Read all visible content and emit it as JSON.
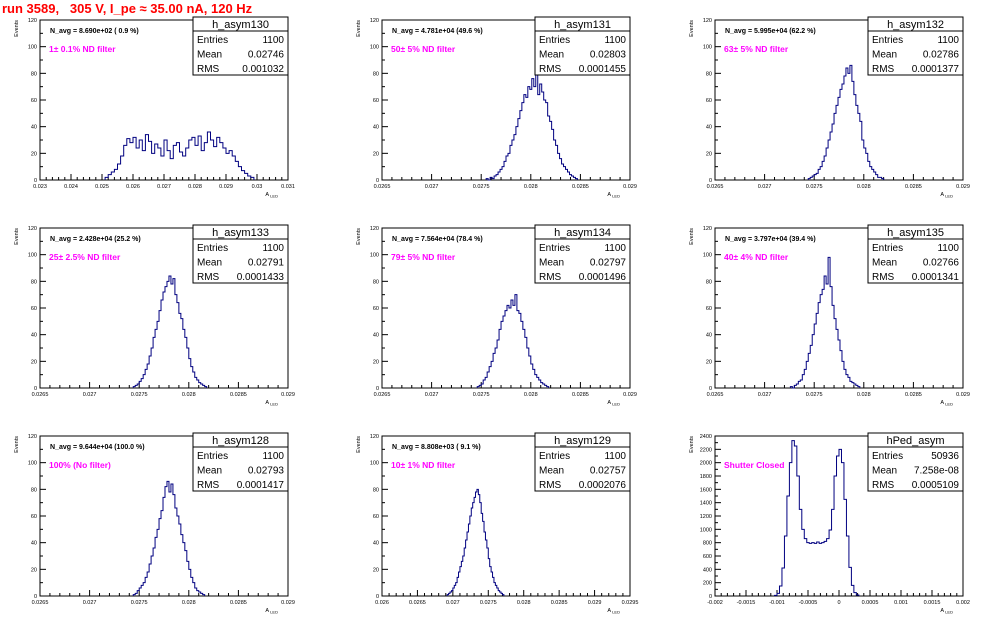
{
  "page_title": "run 3589,   305 V, I_pe ≈ 35.00 nA, 120 Hz",
  "colors": {
    "histogram": "#000080",
    "annotation": "#ff00ff",
    "title": "#ff0000",
    "axis": "#000000"
  },
  "stat_labels": {
    "entries": "Entries",
    "mean": "Mean",
    "rms": "RMS"
  },
  "chart_data": [
    {
      "type": "histogram",
      "name": "h_asym130",
      "navg": "N_avg = 8.690e+02 ( 0.9 %)",
      "filter": "1± 0.1% ND filter",
      "entries": "1100",
      "mean": "0.02746",
      "rms": "0.001032",
      "ylabel": "Events",
      "xlabel": "A",
      "xlabel_sub": "LED",
      "xlim": [
        0.023,
        0.031
      ],
      "ylim": [
        0,
        120
      ],
      "xticks": [
        "0.023",
        "0.024",
        "0.025",
        "0.026",
        "0.027",
        "0.028",
        "0.029",
        "0.03",
        "0.031"
      ],
      "yticks": [
        "0",
        "20",
        "40",
        "60",
        "80",
        "100",
        "120"
      ],
      "bins": {
        "start": 0.0251,
        "width": 0.0001,
        "counts": [
          2,
          4,
          6,
          8,
          12,
          18,
          26,
          31,
          28,
          32,
          24,
          30,
          22,
          34,
          29,
          20,
          27,
          24,
          18,
          30,
          22,
          16,
          26,
          28,
          21,
          18,
          24,
          30,
          32,
          26,
          33,
          22,
          28,
          36,
          30,
          25,
          32,
          28,
          24,
          20,
          22,
          18,
          14,
          10,
          7,
          5,
          3,
          2
        ]
      }
    },
    {
      "type": "histogram",
      "name": "h_asym131",
      "navg": "N_avg = 4.781e+04 (49.6 %)",
      "filter": "50± 5% ND filter",
      "entries": "1100",
      "mean": "0.02803",
      "rms": "0.0001455",
      "ylabel": "Events",
      "xlabel": "A",
      "xlabel_sub": "LED",
      "xlim": [
        0.0265,
        0.029
      ],
      "ylim": [
        0,
        120
      ],
      "xticks": [
        "0.0265",
        "0.027",
        "0.0275",
        "0.028",
        "0.0285",
        "0.029"
      ],
      "yticks": [
        "0",
        "20",
        "40",
        "60",
        "80",
        "100",
        "120"
      ],
      "bins": {
        "start": 0.02755,
        "width": 2e-05,
        "counts": [
          1,
          0,
          2,
          1,
          3,
          4,
          6,
          8,
          10,
          14,
          18,
          20,
          26,
          30,
          34,
          40,
          46,
          52,
          58,
          64,
          62,
          70,
          68,
          76,
          70,
          84,
          64,
          72,
          66,
          60,
          58,
          48,
          44,
          38,
          30,
          26,
          20,
          16,
          12,
          10,
          8,
          6,
          4,
          3,
          2,
          1
        ]
      }
    },
    {
      "type": "histogram",
      "name": "h_asym132",
      "navg": "N_avg = 5.995e+04 (62.2 %)",
      "filter": "63± 5% ND filter",
      "entries": "1100",
      "mean": "0.02786",
      "rms": "0.0001377",
      "ylabel": "Events",
      "xlabel": "A",
      "xlabel_sub": "LED",
      "xlim": [
        0.0265,
        0.029
      ],
      "ylim": [
        0,
        120
      ],
      "xticks": [
        "0.0265",
        "0.027",
        "0.0275",
        "0.028",
        "0.0285",
        "0.029"
      ],
      "yticks": [
        "0",
        "20",
        "40",
        "60",
        "80",
        "100",
        "120"
      ],
      "bins": {
        "start": 0.02744,
        "width": 2e-05,
        "counts": [
          1,
          2,
          3,
          4,
          5,
          8,
          10,
          14,
          18,
          24,
          30,
          36,
          42,
          50,
          56,
          62,
          68,
          72,
          78,
          84,
          80,
          86,
          74,
          64,
          56,
          50,
          44,
          30,
          24,
          20,
          14,
          10,
          8,
          6,
          4,
          2,
          2,
          1
        ]
      }
    },
    {
      "type": "histogram",
      "name": "h_asym133",
      "navg": "N_avg = 2.428e+04 (25.2 %)",
      "filter": "25± 2.5% ND filter",
      "entries": "1100",
      "mean": "0.02791",
      "rms": "0.0001433",
      "ylabel": "Events",
      "xlabel": "A",
      "xlabel_sub": "LED",
      "xlim": [
        0.0265,
        0.029
      ],
      "ylim": [
        0,
        120
      ],
      "xticks": [
        "0.0265",
        "0.027",
        "0.0275",
        "0.028",
        "0.0285",
        "0.029"
      ],
      "yticks": [
        "0",
        "20",
        "40",
        "60",
        "80",
        "100",
        "120"
      ],
      "bins": {
        "start": 0.02744,
        "width": 2e-05,
        "counts": [
          1,
          2,
          3,
          5,
          7,
          10,
          14,
          18,
          24,
          30,
          38,
          44,
          50,
          58,
          66,
          72,
          76,
          80,
          84,
          78,
          82,
          70,
          64,
          56,
          52,
          44,
          38,
          30,
          22,
          16,
          12,
          8,
          6,
          4,
          3,
          2,
          1
        ]
      }
    },
    {
      "type": "histogram",
      "name": "h_asym134",
      "navg": "N_avg = 7.564e+04 (78.4 %)",
      "filter": "79± 5% ND filter",
      "entries": "1100",
      "mean": "0.02797",
      "rms": "0.0001496",
      "ylabel": "Events",
      "xlabel": "A",
      "xlabel_sub": "LED",
      "xlim": [
        0.0265,
        0.029
      ],
      "ylim": [
        0,
        120
      ],
      "xticks": [
        "0.0265",
        "0.027",
        "0.0275",
        "0.028",
        "0.0285",
        "0.029"
      ],
      "yticks": [
        "0",
        "20",
        "40",
        "60",
        "80",
        "100",
        "120"
      ],
      "bins": {
        "start": 0.02746,
        "width": 2e-05,
        "counts": [
          1,
          2,
          3,
          6,
          8,
          12,
          16,
          20,
          26,
          30,
          36,
          44,
          50,
          54,
          58,
          62,
          60,
          66,
          62,
          70,
          58,
          56,
          50,
          44,
          38,
          30,
          24,
          18,
          14,
          10,
          8,
          6,
          4,
          3,
          2,
          1
        ]
      }
    },
    {
      "type": "histogram",
      "name": "h_asym135",
      "navg": "N_avg = 3.797e+04 (39.4 %)",
      "filter": "40± 4% ND filter",
      "entries": "1100",
      "mean": "0.02766",
      "rms": "0.0001341",
      "ylabel": "Events",
      "xlabel": "A",
      "xlabel_sub": "LED",
      "xlim": [
        0.0265,
        0.029
      ],
      "ylim": [
        0,
        120
      ],
      "xticks": [
        "0.0265",
        "0.027",
        "0.0275",
        "0.028",
        "0.0285",
        "0.029"
      ],
      "yticks": [
        "0",
        "20",
        "40",
        "60",
        "80",
        "100",
        "120"
      ],
      "bins": {
        "start": 0.02726,
        "width": 2e-05,
        "counts": [
          1,
          0,
          2,
          3,
          5,
          6,
          10,
          14,
          20,
          26,
          32,
          40,
          48,
          56,
          64,
          70,
          74,
          84,
          78,
          98,
          76,
          62,
          52,
          44,
          36,
          28,
          20,
          14,
          10,
          8,
          5,
          4,
          3,
          2,
          1
        ]
      }
    },
    {
      "type": "histogram",
      "name": "h_asym128",
      "navg": "N_avg = 9.644e+04 (100.0 %)",
      "filter": "100% (No filter)",
      "entries": "1100",
      "mean": "0.02793",
      "rms": "0.0001417",
      "ylabel": "Events",
      "xlabel": "A",
      "xlabel_sub": "LED",
      "xlim": [
        0.0265,
        0.029
      ],
      "ylim": [
        0,
        120
      ],
      "xticks": [
        "0.0265",
        "0.027",
        "0.0275",
        "0.028",
        "0.0285",
        "0.029"
      ],
      "yticks": [
        "0",
        "20",
        "40",
        "60",
        "80",
        "100",
        "120"
      ],
      "bins": {
        "start": 0.02744,
        "width": 2e-05,
        "counts": [
          1,
          2,
          4,
          6,
          8,
          10,
          14,
          18,
          24,
          30,
          36,
          44,
          50,
          58,
          64,
          74,
          82,
          86,
          78,
          84,
          76,
          66,
          60,
          54,
          46,
          40,
          34,
          26,
          20,
          14,
          10,
          6,
          4,
          3,
          2,
          1
        ]
      }
    },
    {
      "type": "histogram",
      "name": "h_asym129",
      "navg": "N_avg = 8.808e+03 ( 9.1 %)",
      "filter": "10± 1% ND filter",
      "entries": "1100",
      "mean": "0.02757",
      "rms": "0.0002076",
      "ylabel": "Events",
      "xlabel": "A",
      "xlabel_sub": "LED",
      "xlim": [
        0.026,
        0.0295
      ],
      "ylim": [
        0,
        120
      ],
      "xticks": [
        "0.026",
        "0.0265",
        "0.027",
        "0.0275",
        "0.028",
        "0.0285",
        "0.029",
        "0.0295"
      ],
      "yticks": [
        "0",
        "20",
        "40",
        "60",
        "80",
        "100",
        "120"
      ],
      "bins": {
        "start": 0.02692,
        "width": 2e-05,
        "counts": [
          1,
          2,
          3,
          4,
          6,
          8,
          10,
          14,
          18,
          22,
          26,
          30,
          36,
          42,
          48,
          54,
          60,
          66,
          70,
          74,
          78,
          80,
          76,
          70,
          62,
          56,
          48,
          42,
          36,
          28,
          22,
          18,
          14,
          10,
          8,
          6,
          4,
          3,
          2,
          1
        ]
      }
    },
    {
      "type": "histogram",
      "name": "hPed_asym",
      "navg": "",
      "filter": "Shutter Closed",
      "entries": "50936",
      "mean": "7.258e-08",
      "rms": "0.0005109",
      "ylabel": "Events",
      "xlabel": "A",
      "xlabel_sub": "LED",
      "xlim": [
        -0.002,
        0.002
      ],
      "ylim": [
        0,
        2400
      ],
      "xticks": [
        "-0.002",
        "-0.0015",
        "-0.001",
        "-0.0005",
        "0",
        "0.0005",
        "0.001",
        "0.0015",
        "0.002"
      ],
      "yticks": [
        "0",
        "200",
        "400",
        "600",
        "800",
        "1000",
        "1200",
        "1400",
        "1600",
        "1800",
        "2000",
        "2200",
        "2400"
      ],
      "bins": {
        "start": -0.00104,
        "width": 4e-05,
        "counts": [
          10,
          40,
          150,
          420,
          900,
          1500,
          2000,
          2330,
          2250,
          1800,
          1300,
          1000,
          860,
          800,
          790,
          800,
          790,
          810,
          790,
          800,
          820,
          860,
          990,
          1300,
          1800,
          2100,
          2200,
          2000,
          1450,
          900,
          430,
          160,
          50,
          15
        ]
      }
    }
  ]
}
